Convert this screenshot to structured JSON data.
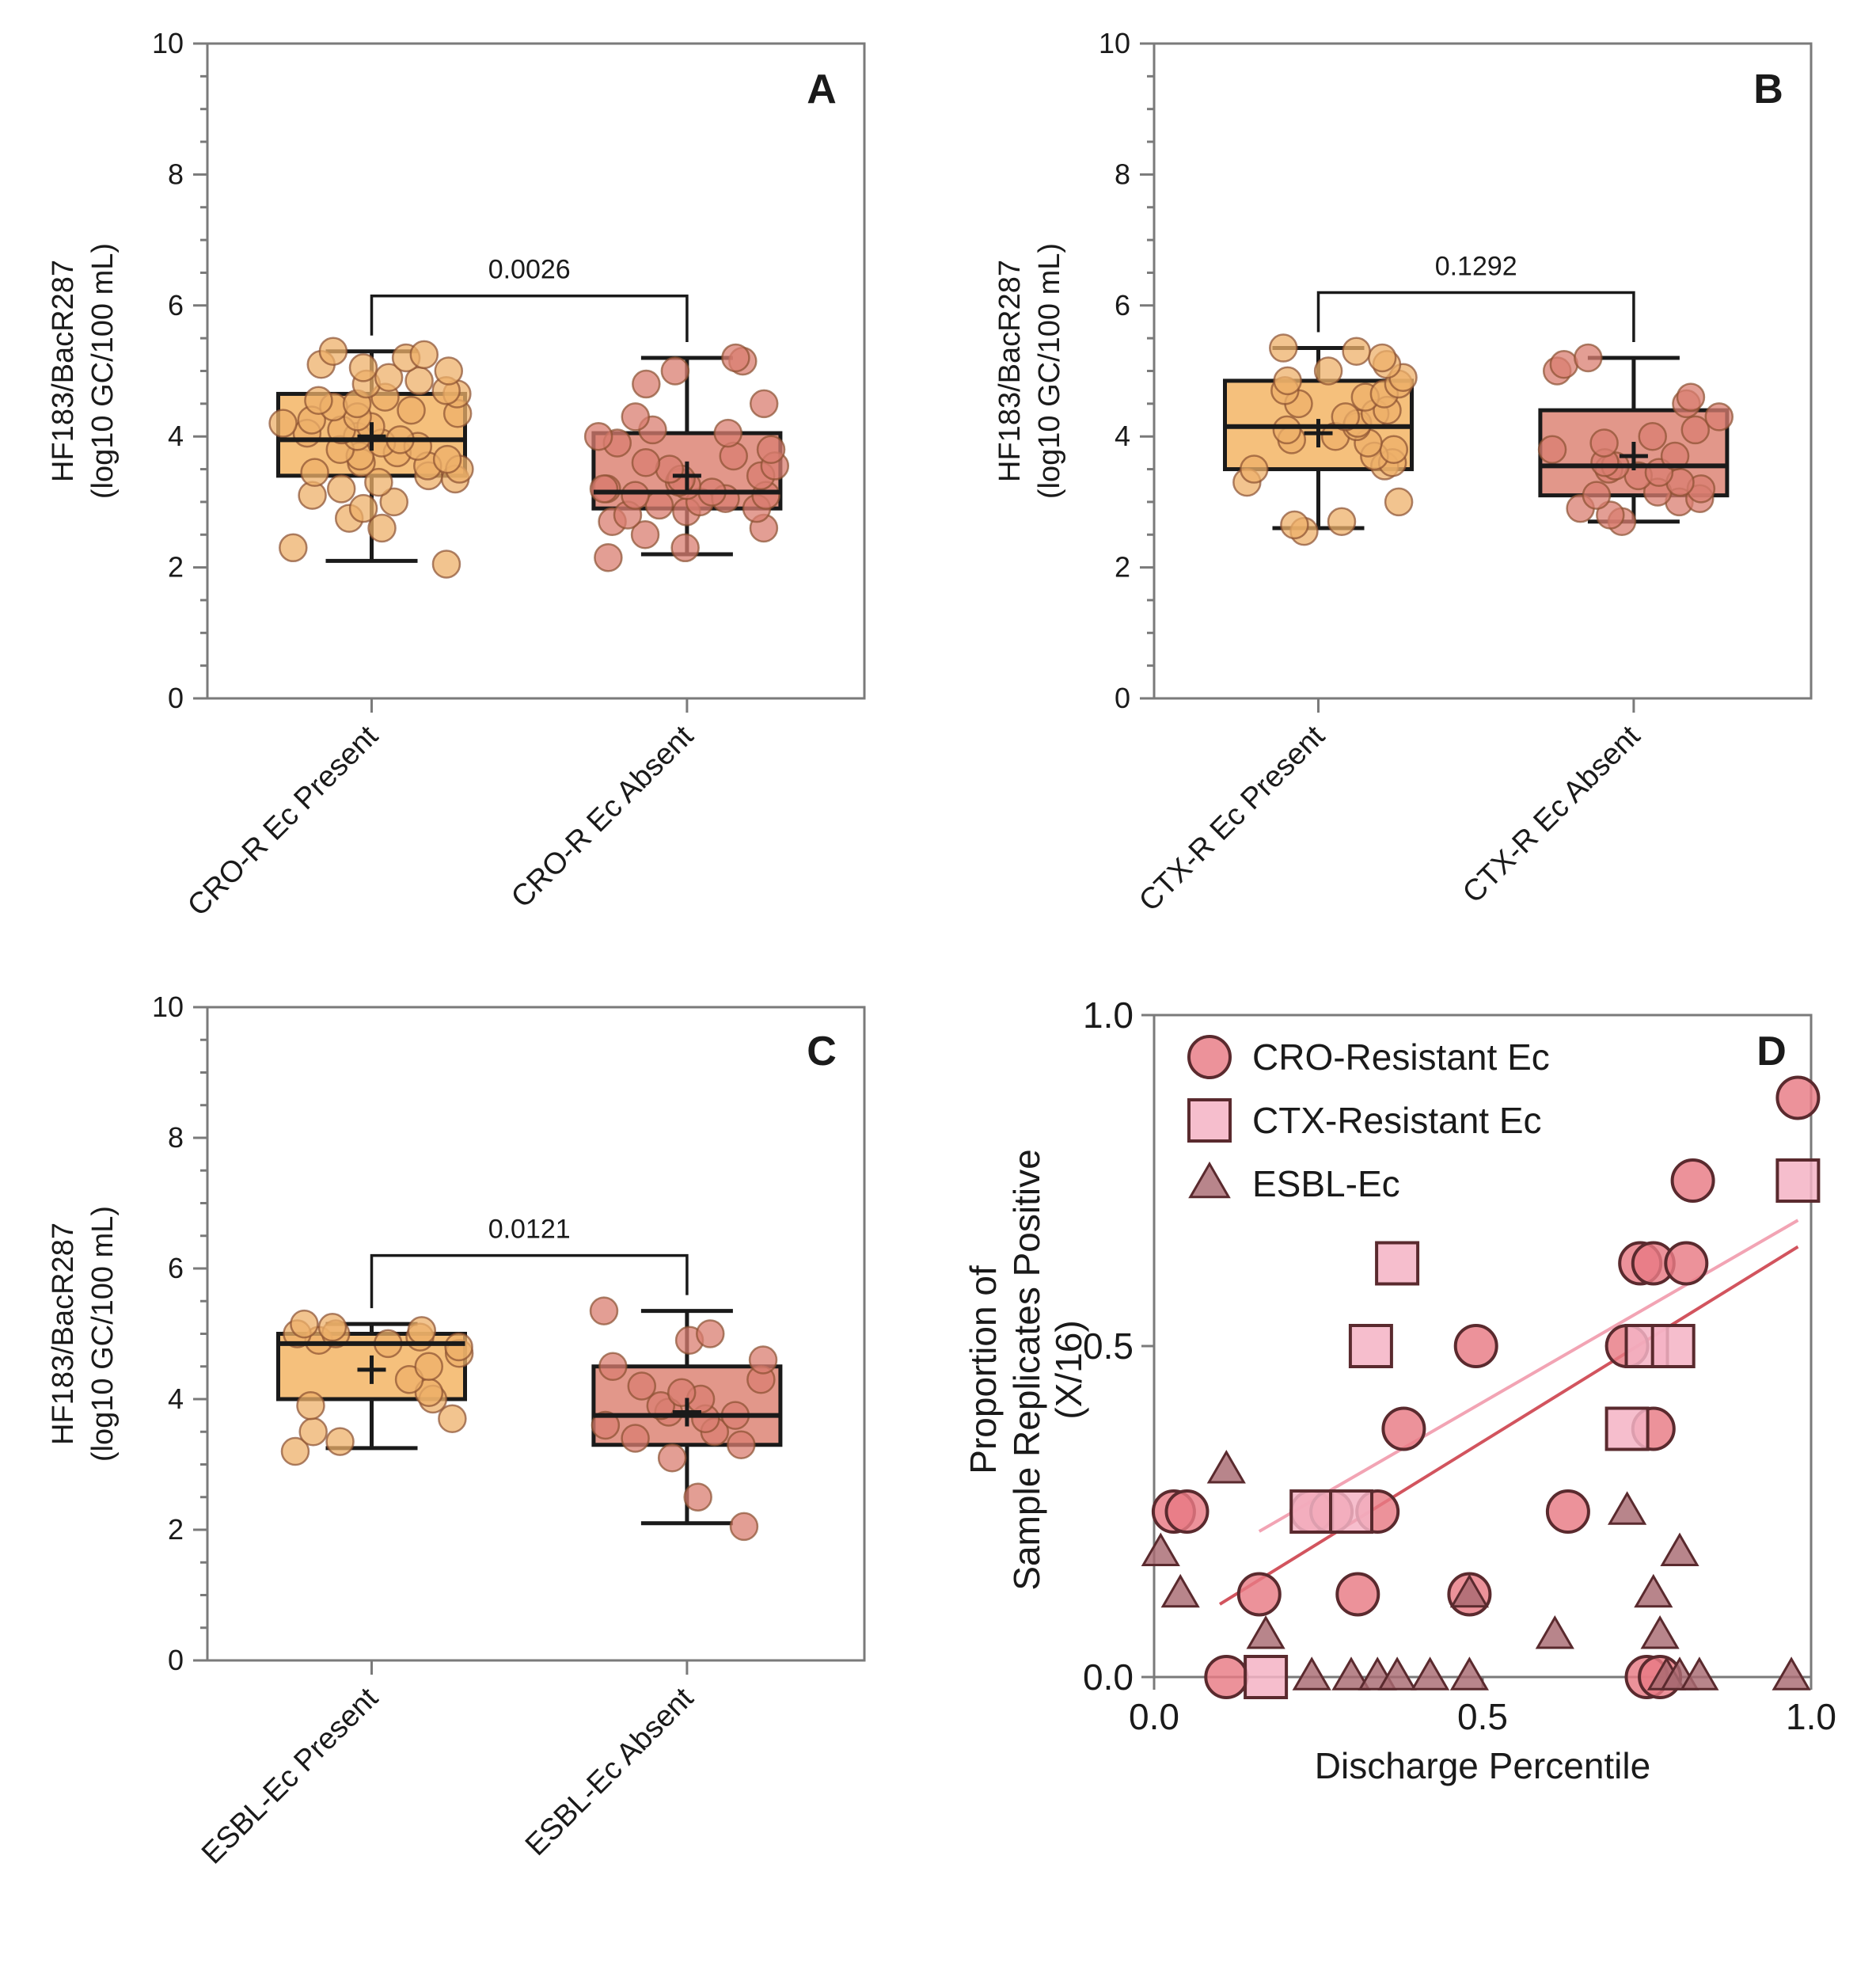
{
  "colors": {
    "present": "#f3b565",
    "absent": "#dd8576",
    "present_point": "#eeb06a",
    "absent_point": "#d97e70",
    "cro": "#e87a84",
    "ctx": "#f5b3c4",
    "esbl": "#a86a72",
    "line_dark": "#d2545e",
    "line_light": "#f2a4b4"
  },
  "chart_data": [
    {
      "panel": "A",
      "type": "box",
      "ylabel": "HF183/BacR287",
      "ylabel_unit": "(log10 GC/100 mL)",
      "ylim": [
        0,
        10
      ],
      "yticks": [
        "0",
        "2",
        "4",
        "6",
        "8",
        "10"
      ],
      "categories": [
        "CRO-R Ec Present",
        "CRO-R Ec Absent"
      ],
      "p_value": "0.0026",
      "boxes": [
        {
          "whisker_low": 2.1,
          "q1": 3.4,
          "median": 3.95,
          "q3": 4.65,
          "whisker_high": 5.3,
          "mean": 4.0,
          "points": [
            2.05,
            2.3,
            2.6,
            2.75,
            2.9,
            3.0,
            3.1,
            3.2,
            3.3,
            3.35,
            3.4,
            3.45,
            3.5,
            3.55,
            3.6,
            3.65,
            3.7,
            3.75,
            3.8,
            3.85,
            3.9,
            3.95,
            4.0,
            4.05,
            4.1,
            4.15,
            4.2,
            4.25,
            4.3,
            4.35,
            4.4,
            4.45,
            4.5,
            4.55,
            4.6,
            4.65,
            4.7,
            4.8,
            4.85,
            4.9,
            5.0,
            5.05,
            5.1,
            5.2,
            5.25,
            5.3
          ]
        },
        {
          "whisker_low": 2.2,
          "q1": 2.9,
          "median": 3.15,
          "q3": 4.05,
          "whisker_high": 5.2,
          "mean": 3.4,
          "points": [
            2.15,
            2.3,
            2.5,
            2.6,
            2.7,
            2.8,
            2.85,
            2.9,
            2.95,
            3.0,
            3.05,
            3.1,
            3.1,
            3.15,
            3.2,
            3.2,
            3.25,
            3.3,
            3.35,
            3.4,
            3.5,
            3.55,
            3.6,
            3.7,
            3.8,
            3.9,
            4.0,
            4.05,
            4.1,
            4.3,
            4.5,
            4.8,
            5.0,
            5.15,
            5.2
          ]
        }
      ]
    },
    {
      "panel": "B",
      "type": "box",
      "ylabel": "HF183/BacR287",
      "ylabel_unit": "(log10 GC/100 mL)",
      "ylim": [
        0,
        10
      ],
      "yticks": [
        "0",
        "2",
        "4",
        "6",
        "8",
        "10"
      ],
      "categories": [
        "CTX-R Ec Present",
        "CTX-R Ec Absent"
      ],
      "p_value": "0.1292",
      "boxes": [
        {
          "whisker_low": 2.6,
          "q1": 3.5,
          "median": 4.15,
          "q3": 4.85,
          "whisker_high": 5.35,
          "mean": 4.05,
          "points": [
            2.55,
            2.65,
            2.7,
            3.0,
            3.3,
            3.5,
            3.55,
            3.6,
            3.7,
            3.8,
            3.9,
            3.95,
            4.0,
            4.1,
            4.15,
            4.2,
            4.3,
            4.35,
            4.4,
            4.5,
            4.6,
            4.65,
            4.7,
            4.8,
            4.85,
            4.9,
            5.0,
            5.1,
            5.2,
            5.3,
            5.35
          ]
        },
        {
          "whisker_low": 2.7,
          "q1": 3.1,
          "median": 3.55,
          "q3": 4.4,
          "whisker_high": 5.2,
          "mean": 3.7,
          "points": [
            2.7,
            2.8,
            2.9,
            3.0,
            3.05,
            3.1,
            3.15,
            3.2,
            3.3,
            3.4,
            3.45,
            3.5,
            3.55,
            3.6,
            3.7,
            3.8,
            3.9,
            4.0,
            4.1,
            4.3,
            4.5,
            4.6,
            5.0,
            5.1,
            5.2
          ]
        }
      ]
    },
    {
      "panel": "C",
      "type": "box",
      "ylabel": "HF183/BacR287",
      "ylabel_unit": "(log10 GC/100 mL)",
      "ylim": [
        0,
        10
      ],
      "yticks": [
        "0",
        "2",
        "4",
        "6",
        "8",
        "10"
      ],
      "categories": [
        "ESBL-Ec Present",
        "ESBL-Ec Absent"
      ],
      "p_value": "0.0121",
      "boxes": [
        {
          "whisker_low": 3.25,
          "q1": 4.0,
          "median": 4.85,
          "q3": 5.0,
          "whisker_high": 5.15,
          "mean": 4.45,
          "points": [
            3.2,
            3.35,
            3.5,
            3.7,
            3.9,
            4.0,
            4.1,
            4.3,
            4.5,
            4.7,
            4.8,
            4.85,
            4.9,
            4.95,
            5.0,
            5.0,
            5.05,
            5.1,
            5.15
          ]
        },
        {
          "whisker_low": 2.1,
          "q1": 3.3,
          "median": 3.75,
          "q3": 4.5,
          "whisker_high": 5.35,
          "mean": 3.8,
          "points": [
            2.05,
            2.5,
            3.1,
            3.3,
            3.4,
            3.5,
            3.6,
            3.7,
            3.75,
            3.8,
            3.9,
            4.0,
            4.1,
            4.2,
            4.3,
            4.5,
            4.6,
            4.9,
            5.0,
            5.35
          ]
        }
      ]
    },
    {
      "panel": "D",
      "type": "scatter",
      "xlabel": "Discharge Percentile",
      "ylabel_lines": [
        "Proportion of",
        "Sample Replicates Positive",
        "(X/16)"
      ],
      "xlim": [
        0,
        1
      ],
      "ylim": [
        0,
        1
      ],
      "xticks": [
        "0.0",
        "0.5",
        "1.0"
      ],
      "yticks": [
        "0.0",
        "0.5",
        "1.0"
      ],
      "legend_position": "top-left",
      "series": [
        {
          "name": "CRO-Resistant Ec",
          "marker": "circle",
          "points": [
            [
              0.03,
              0.25
            ],
            [
              0.05,
              0.25
            ],
            [
              0.11,
              0.0
            ],
            [
              0.16,
              0.125
            ],
            [
              0.24,
              0.25
            ],
            [
              0.27,
              0.25
            ],
            [
              0.31,
              0.125
            ],
            [
              0.34,
              0.25
            ],
            [
              0.38,
              0.375
            ],
            [
              0.48,
              0.125
            ],
            [
              0.49,
              0.5
            ],
            [
              0.63,
              0.25
            ],
            [
              0.72,
              0.5
            ],
            [
              0.74,
              0.625
            ],
            [
              0.76,
              0.625
            ],
            [
              0.75,
              0.0
            ],
            [
              0.77,
              0.0
            ],
            [
              0.76,
              0.375
            ],
            [
              0.81,
              0.625
            ],
            [
              0.82,
              0.75
            ],
            [
              0.98,
              0.875
            ]
          ]
        },
        {
          "name": "CTX-Resistant Ec",
          "marker": "square",
          "points": [
            [
              0.17,
              0.0
            ],
            [
              0.24,
              0.25
            ],
            [
              0.3,
              0.25
            ],
            [
              0.33,
              0.5
            ],
            [
              0.37,
              0.625
            ],
            [
              0.72,
              0.375
            ],
            [
              0.75,
              0.5
            ],
            [
              0.79,
              0.5
            ],
            [
              0.98,
              0.75
            ]
          ]
        },
        {
          "name": "ESBL-Ec",
          "marker": "triangle",
          "points": [
            [
              0.01,
              0.1875
            ],
            [
              0.04,
              0.125
            ],
            [
              0.11,
              0.3125
            ],
            [
              0.17,
              0.0625
            ],
            [
              0.24,
              0.0
            ],
            [
              0.3,
              0.0
            ],
            [
              0.34,
              0.0
            ],
            [
              0.37,
              0.0
            ],
            [
              0.42,
              0.0
            ],
            [
              0.48,
              0.125
            ],
            [
              0.48,
              0.0
            ],
            [
              0.61,
              0.0625
            ],
            [
              0.72,
              0.25
            ],
            [
              0.76,
              0.125
            ],
            [
              0.77,
              0.0625
            ],
            [
              0.78,
              0.0
            ],
            [
              0.8,
              0.1875
            ],
            [
              0.8,
              0.0
            ],
            [
              0.83,
              0.0
            ],
            [
              0.97,
              0.0
            ]
          ]
        }
      ],
      "fits": [
        {
          "series": "CRO-Resistant Ec",
          "x": [
            0.1,
            0.98
          ],
          "y": [
            0.11,
            0.65
          ]
        },
        {
          "series": "CTX-Resistant Ec",
          "x": [
            0.16,
            0.98
          ],
          "y": [
            0.22,
            0.69
          ]
        }
      ]
    }
  ]
}
